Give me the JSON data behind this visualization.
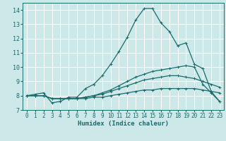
{
  "xlabel": "Humidex (Indice chaleur)",
  "bg_color": "#cce8e8",
  "grid_color": "#ffffff",
  "line_color": "#1a6b6b",
  "xlim": [
    -0.5,
    23.5
  ],
  "ylim": [
    7.0,
    14.5
  ],
  "yticks": [
    7,
    8,
    9,
    10,
    11,
    12,
    13,
    14
  ],
  "xticks": [
    0,
    1,
    2,
    3,
    4,
    5,
    6,
    7,
    8,
    9,
    10,
    11,
    12,
    13,
    14,
    15,
    16,
    17,
    18,
    19,
    20,
    21,
    22,
    23
  ],
  "lines": [
    {
      "x": [
        0,
        1,
        2,
        3,
        4,
        5,
        6,
        7,
        8,
        9,
        10,
        11,
        12,
        13,
        14,
        15,
        16,
        17,
        18,
        19,
        20,
        21,
        22,
        23
      ],
      "y": [
        8.0,
        8.1,
        8.2,
        7.5,
        7.6,
        7.9,
        7.9,
        8.5,
        8.8,
        9.4,
        10.2,
        11.1,
        12.1,
        13.3,
        14.1,
        14.1,
        13.1,
        12.5,
        11.5,
        11.7,
        10.2,
        9.9,
        8.3,
        7.6
      ]
    },
    {
      "x": [
        0,
        1,
        2,
        3,
        4,
        5,
        6,
        7,
        8,
        9,
        10,
        11,
        12,
        13,
        14,
        15,
        16,
        17,
        18,
        19,
        20,
        21,
        22,
        23
      ],
      "y": [
        8.0,
        8.0,
        8.0,
        7.8,
        7.8,
        7.8,
        7.8,
        7.9,
        8.0,
        8.2,
        8.4,
        8.7,
        9.0,
        9.3,
        9.5,
        9.7,
        9.8,
        9.9,
        10.0,
        10.1,
        10.0,
        8.8,
        8.2,
        7.6
      ]
    },
    {
      "x": [
        0,
        1,
        2,
        3,
        4,
        5,
        6,
        7,
        8,
        9,
        10,
        11,
        12,
        13,
        14,
        15,
        16,
        17,
        18,
        19,
        20,
        21,
        22,
        23
      ],
      "y": [
        8.0,
        8.0,
        8.0,
        7.8,
        7.8,
        7.8,
        7.8,
        7.9,
        8.0,
        8.1,
        8.3,
        8.5,
        8.7,
        8.9,
        9.1,
        9.2,
        9.3,
        9.4,
        9.4,
        9.3,
        9.2,
        9.0,
        8.8,
        8.6
      ]
    },
    {
      "x": [
        0,
        1,
        2,
        3,
        4,
        5,
        6,
        7,
        8,
        9,
        10,
        11,
        12,
        13,
        14,
        15,
        16,
        17,
        18,
        19,
        20,
        21,
        22,
        23
      ],
      "y": [
        8.0,
        8.0,
        8.0,
        7.8,
        7.8,
        7.8,
        7.8,
        7.8,
        7.9,
        7.9,
        8.0,
        8.1,
        8.2,
        8.3,
        8.4,
        8.4,
        8.5,
        8.5,
        8.5,
        8.5,
        8.5,
        8.4,
        8.3,
        8.2
      ]
    }
  ],
  "marker": "+",
  "markersize": 3,
  "linewidth": 0.9,
  "tick_fontsize": 5.5,
  "xlabel_fontsize": 6.5
}
